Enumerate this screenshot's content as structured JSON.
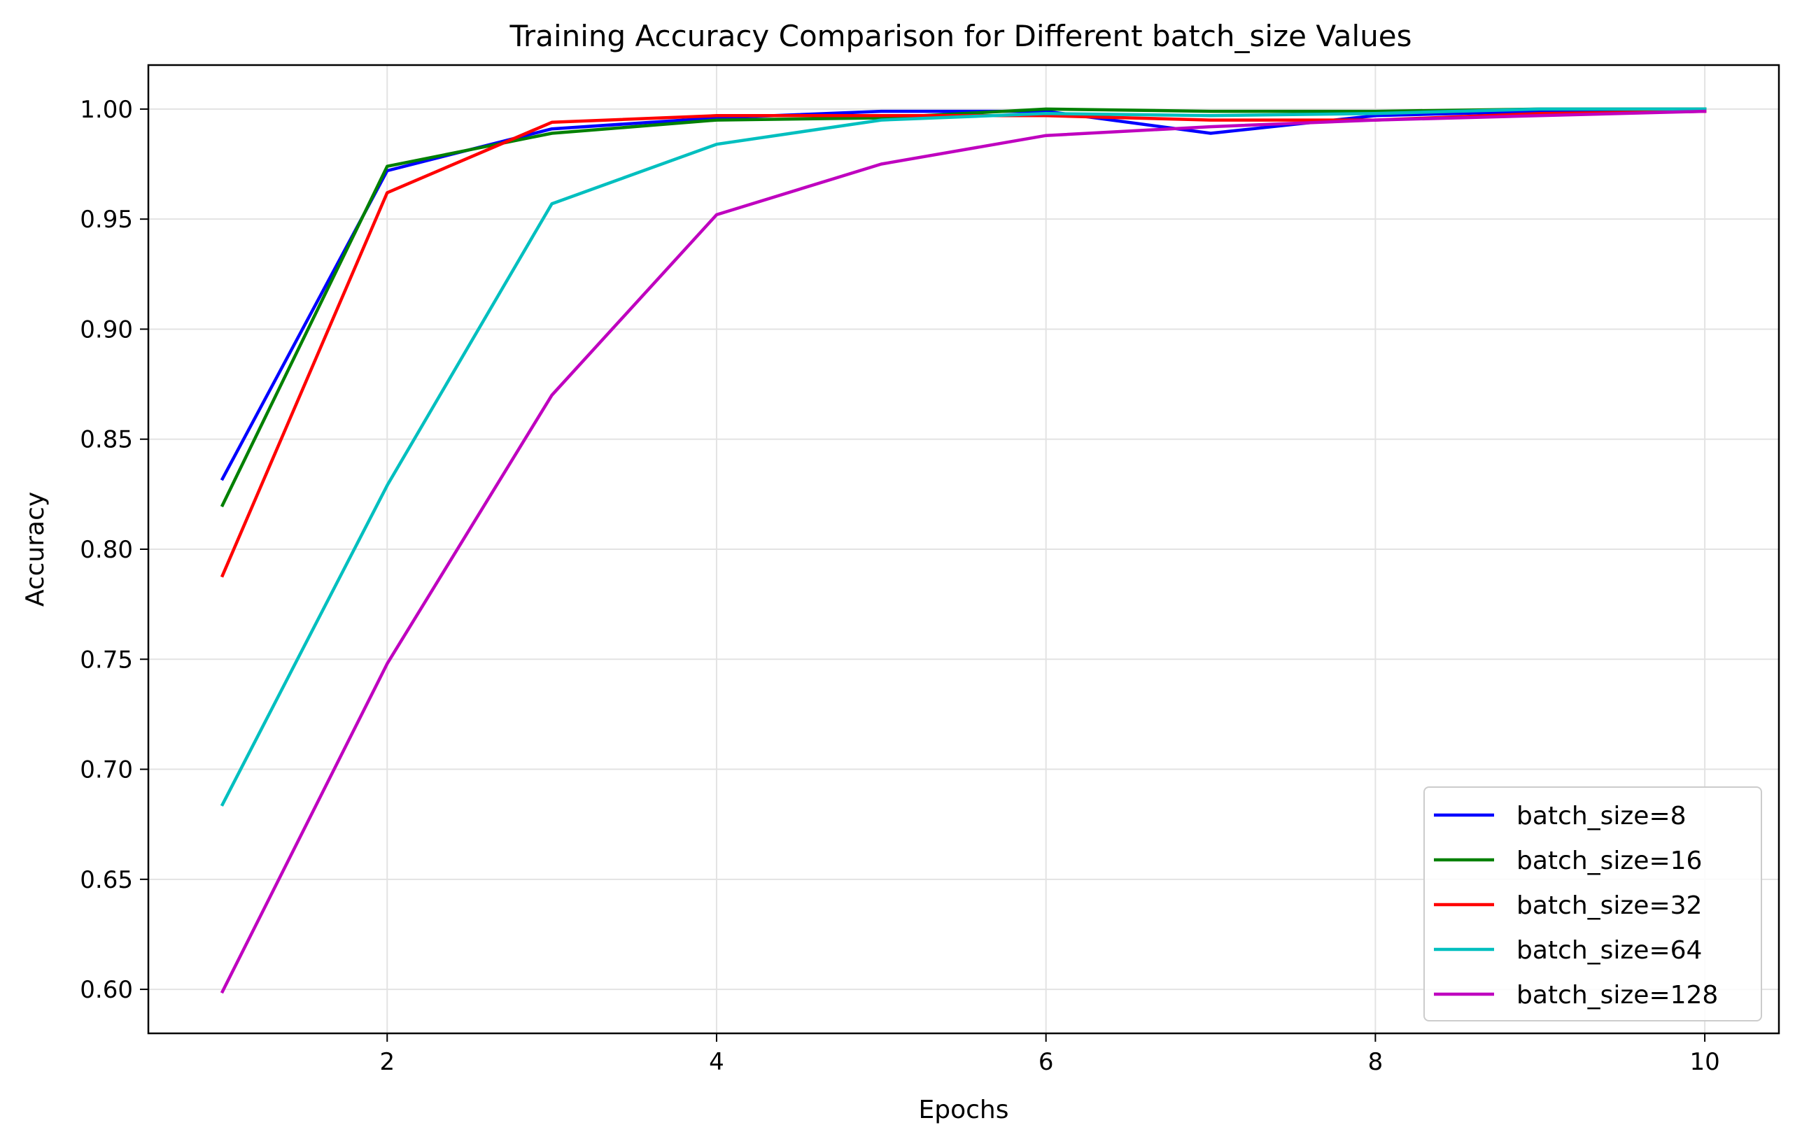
{
  "chart_data": {
    "type": "line",
    "title": "Training Accuracy Comparison for Different batch_size Values",
    "xlabel": "Epochs",
    "ylabel": "Accuracy",
    "x": [
      1,
      2,
      3,
      4,
      5,
      6,
      7,
      8,
      9,
      10
    ],
    "xlim": [
      0.55,
      10.45
    ],
    "ylim": [
      0.58,
      1.02
    ],
    "xticks": [
      "2",
      "4",
      "6",
      "8",
      "10"
    ],
    "yticks": [
      "0.60",
      "0.65",
      "0.70",
      "0.75",
      "0.80",
      "0.85",
      "0.90",
      "0.95",
      "1.00"
    ],
    "grid": true,
    "legend_position": "lower-right",
    "series": [
      {
        "name": "batch_size=8",
        "color": "#0000ff",
        "values": [
          0.832,
          0.972,
          0.991,
          0.996,
          0.999,
          0.999,
          0.989,
          0.997,
          0.999,
          1.0
        ]
      },
      {
        "name": "batch_size=16",
        "color": "#008000",
        "values": [
          0.82,
          0.974,
          0.989,
          0.995,
          0.996,
          1.0,
          0.999,
          0.999,
          1.0,
          1.0
        ]
      },
      {
        "name": "batch_size=32",
        "color": "#ff0000",
        "values": [
          0.788,
          0.962,
          0.994,
          0.997,
          0.997,
          0.997,
          0.995,
          0.995,
          0.998,
          0.999
        ]
      },
      {
        "name": "batch_size=64",
        "color": "#00bfbf",
        "values": [
          0.684,
          0.829,
          0.957,
          0.984,
          0.995,
          0.998,
          0.997,
          0.998,
          1.0,
          1.0
        ]
      },
      {
        "name": "batch_size=128",
        "color": "#bf00bf",
        "values": [
          0.599,
          0.748,
          0.87,
          0.952,
          0.975,
          0.988,
          0.992,
          0.995,
          0.997,
          0.999
        ]
      }
    ]
  }
}
